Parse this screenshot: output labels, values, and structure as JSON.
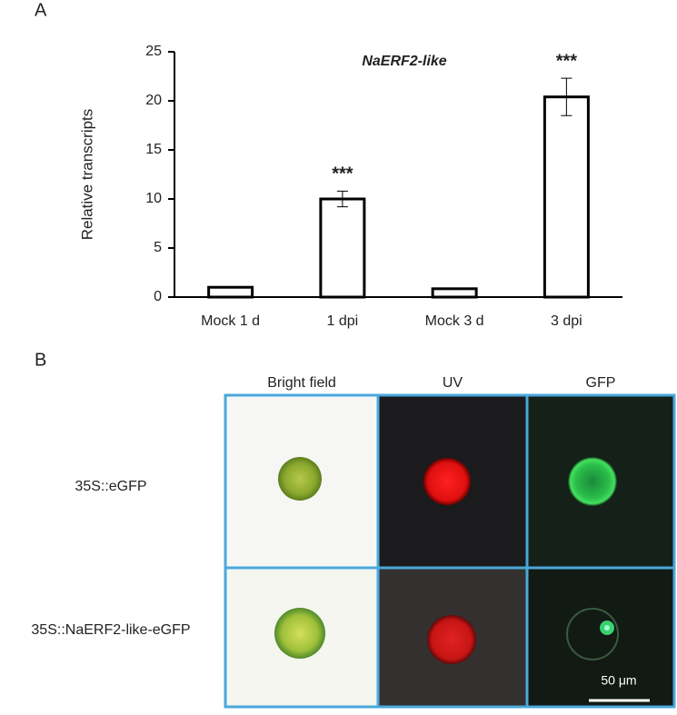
{
  "panel_labels": [
    "A",
    "B"
  ],
  "chart_data": {
    "type": "bar",
    "title": "NaERF2-like",
    "ylabel": "Relative transcripts",
    "categories": [
      "Mock 1 d",
      "1 dpi",
      "Mock 3 d",
      "3 dpi"
    ],
    "values": [
      1.0,
      10.0,
      0.85,
      20.4
    ],
    "errors": [
      null,
      0.8,
      null,
      1.9
    ],
    "significance": [
      null,
      "***",
      null,
      "***"
    ],
    "color": "#ffffff",
    "edge_color": "#000000",
    "ylim": [
      0,
      25
    ],
    "yticks": [
      0,
      5,
      10,
      15,
      20,
      25
    ]
  },
  "microscopy": {
    "columns": [
      "Bright field",
      "UV",
      "GFP"
    ],
    "rows": [
      "35S::eGFP",
      "35S::NaERF2-like-eGFP"
    ],
    "scale_bar": "50 μm"
  }
}
